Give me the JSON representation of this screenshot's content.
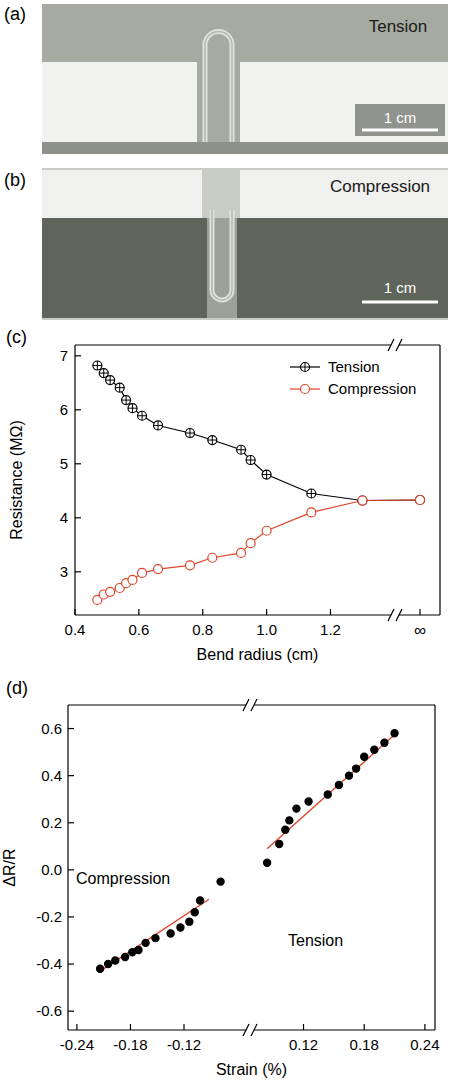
{
  "photos": [
    {
      "panel": "(a)",
      "label": "Tension",
      "scale_bar": "1 cm"
    },
    {
      "panel": "(b)",
      "label": "Compression",
      "scale_bar": "1 cm"
    }
  ],
  "chart_data": [
    {
      "type": "line",
      "panel": "(c)",
      "x_label": "Bend radius (cm)",
      "y_label": "Resistance (MΩ)",
      "xlim": [
        0.4,
        1.33
      ],
      "xticks": [
        0.4,
        0.6,
        0.8,
        {
          "value": 1,
          "label": "1.0"
        },
        1.2
      ],
      "x_break_label": "∞",
      "ylim": [
        2.2,
        7.2
      ],
      "yticks": [
        3,
        4,
        5,
        6,
        7
      ],
      "grid": false,
      "legend": "upper right",
      "series": [
        {
          "name": "Tension",
          "color": "#000000",
          "marker": "circle-plus",
          "line_style": "solid",
          "x": [
            0.47,
            0.49,
            0.51,
            0.54,
            0.56,
            0.58,
            0.61,
            0.66,
            0.76,
            0.83,
            0.92,
            0.95,
            1.0,
            1.14,
            1.3
          ],
          "values": [
            6.82,
            6.68,
            6.55,
            6.41,
            6.18,
            6.03,
            5.89,
            5.71,
            5.57,
            5.44,
            5.26,
            5.07,
            4.8,
            4.45,
            4.32
          ],
          "value_at_infinity": 4.33
        },
        {
          "name": "Compression",
          "color": "#e0452b",
          "marker": "circle",
          "line_style": "solid",
          "x": [
            0.47,
            0.49,
            0.51,
            0.54,
            0.56,
            0.58,
            0.61,
            0.66,
            0.76,
            0.83,
            0.92,
            0.95,
            1.0,
            1.14,
            1.3
          ],
          "values": [
            2.48,
            2.58,
            2.63,
            2.7,
            2.79,
            2.85,
            2.98,
            3.05,
            3.12,
            3.26,
            3.35,
            3.53,
            3.76,
            4.1,
            4.32
          ],
          "value_at_infinity": 4.33
        }
      ]
    },
    {
      "type": "scatter",
      "panel": "(d)",
      "x_label": "Strain (%)",
      "y_label": "ΔR/R",
      "xlim": [
        -0.25,
        0.25
      ],
      "x_break": [
        -0.055,
        0.075
      ],
      "xticks": [
        -0.24,
        -0.18,
        -0.12,
        0.12,
        0.18,
        0.24
      ],
      "ylim": [
        -0.68,
        0.7
      ],
      "yticks": [
        -0.6,
        -0.4,
        -0.2,
        {
          "value": 0,
          "label": "0.0"
        },
        0.2,
        0.4,
        0.6
      ],
      "grid": false,
      "annotations": [
        "Compression",
        "Tension"
      ],
      "series": [
        {
          "type": "scatter",
          "color": "#000000",
          "marker": "circle",
          "x": [
            -0.214,
            -0.205,
            -0.197,
            -0.186,
            -0.178,
            -0.171,
            -0.163,
            -0.152,
            -0.135,
            -0.124,
            -0.114,
            -0.108,
            -0.102,
            -0.079
          ],
          "values": [
            -0.42,
            -0.4,
            -0.385,
            -0.37,
            -0.35,
            -0.34,
            -0.31,
            -0.29,
            -0.27,
            -0.245,
            -0.22,
            -0.18,
            -0.13,
            -0.05
          ]
        },
        {
          "type": "scatter",
          "color": "#000000",
          "marker": "circle",
          "x": [
            0.084,
            0.096,
            0.102,
            0.106,
            0.113,
            0.125,
            0.144,
            0.155,
            0.165,
            0.172,
            0.18,
            0.19,
            0.2,
            0.21
          ],
          "values": [
            0.03,
            0.11,
            0.17,
            0.21,
            0.26,
            0.29,
            0.32,
            0.36,
            0.4,
            0.43,
            0.48,
            0.51,
            0.54,
            0.58
          ]
        },
        {
          "type": "line",
          "color": "#e0452b",
          "line_style": "solid",
          "x": [
            -0.214,
            -0.092
          ],
          "values": [
            -0.43,
            -0.125
          ]
        },
        {
          "type": "line",
          "color": "#e0452b",
          "line_style": "solid",
          "x": [
            0.084,
            0.213
          ],
          "values": [
            0.09,
            0.585
          ]
        }
      ]
    }
  ]
}
